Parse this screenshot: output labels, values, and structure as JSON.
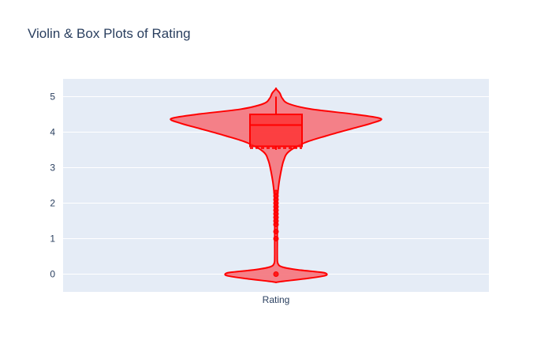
{
  "chart_data": {
    "type": "violin",
    "title": "Violin & Box Plots of Rating",
    "categories": [
      "Rating"
    ],
    "xlabel": "",
    "ylabel": "",
    "ylim": [
      -0.5,
      5.5
    ],
    "yticks": [
      0,
      1,
      2,
      3,
      4,
      5
    ],
    "grid": true,
    "color": "#ff0000",
    "fill_color": "#f47a82",
    "plot_bgcolor": "#e5ecf6",
    "box": {
      "lower_fence": 3.5,
      "q1": 3.6,
      "median": 4.2,
      "q3": 4.5,
      "upper_fence": 5.0,
      "mean": 3.55
    },
    "outliers": [
      0,
      1.0,
      1.2,
      1.4,
      1.5,
      1.6,
      1.7,
      1.8,
      1.9,
      2.0,
      2.1,
      2.2,
      2.3
    ],
    "violin_profile": [
      [
        -0.23,
        0.0
      ],
      [
        -0.2,
        0.12
      ],
      [
        -0.12,
        0.5
      ],
      [
        -0.05,
        0.75
      ],
      [
        0.0,
        0.8
      ],
      [
        0.05,
        0.72
      ],
      [
        0.12,
        0.35
      ],
      [
        0.2,
        0.1
      ],
      [
        0.3,
        0.03
      ],
      [
        0.5,
        0.02
      ],
      [
        0.8,
        0.02
      ],
      [
        1.0,
        0.02
      ],
      [
        1.5,
        0.02
      ],
      [
        2.0,
        0.02
      ],
      [
        2.3,
        0.03
      ],
      [
        2.6,
        0.05
      ],
      [
        2.9,
        0.08
      ],
      [
        3.2,
        0.12
      ],
      [
        3.45,
        0.2
      ],
      [
        3.7,
        0.45
      ],
      [
        3.9,
        0.8
      ],
      [
        4.1,
        1.2
      ],
      [
        4.25,
        1.5
      ],
      [
        4.38,
        1.65
      ],
      [
        4.5,
        1.25
      ],
      [
        4.65,
        0.55
      ],
      [
        4.8,
        0.2
      ],
      [
        4.95,
        0.1
      ],
      [
        5.1,
        0.06
      ],
      [
        5.22,
        0.0
      ]
    ]
  }
}
